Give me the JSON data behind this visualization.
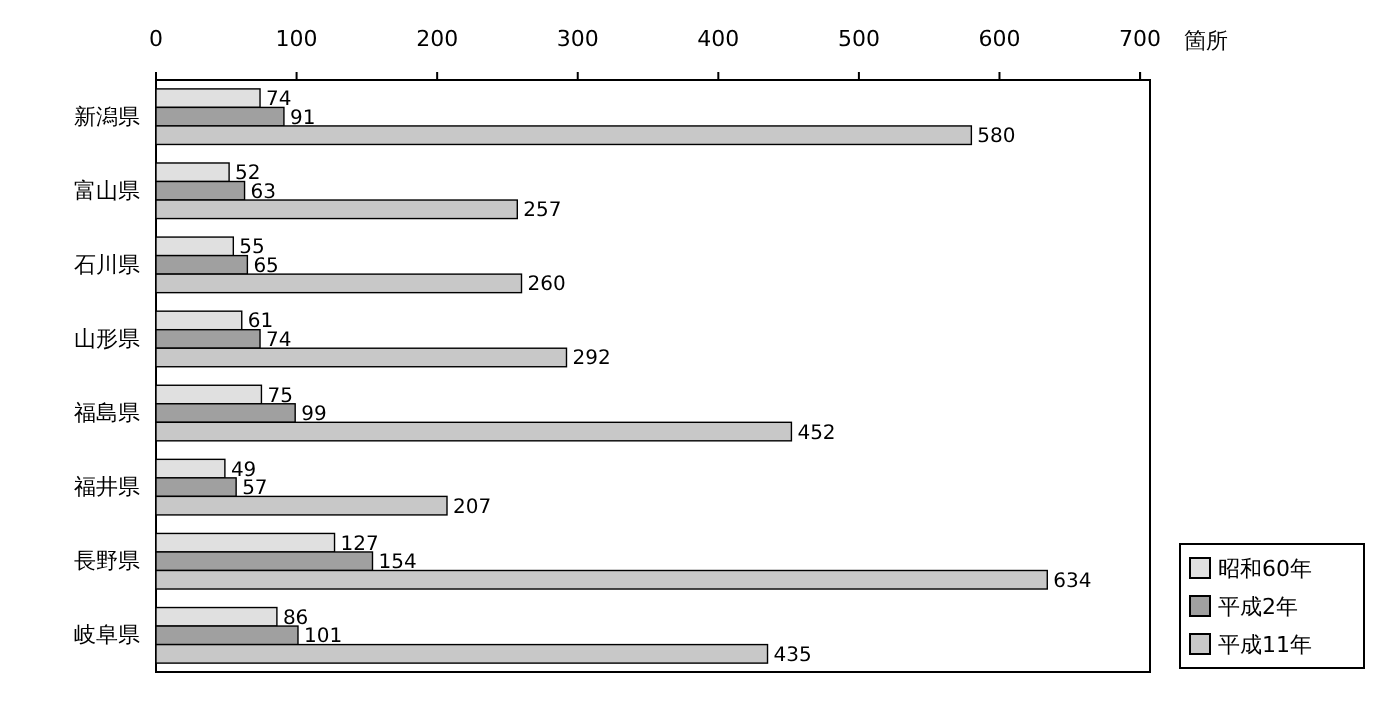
{
  "chart_data": {
    "type": "bar",
    "orientation": "horizontal",
    "xlabel": "箇所",
    "categories": [
      "新潟県",
      "富山県",
      "石川県",
      "山形県",
      "福島県",
      "福井県",
      "長野県",
      "岐阜県"
    ],
    "series": [
      {
        "name": "昭和60年",
        "color": "#e0e0e0",
        "values": [
          74,
          52,
          55,
          61,
          75,
          49,
          127,
          86
        ]
      },
      {
        "name": "平成2年",
        "color": "#a0a0a0",
        "values": [
          91,
          63,
          65,
          74,
          99,
          57,
          154,
          101
        ]
      },
      {
        "name": "平成11年",
        "color": "#c8c8c8",
        "values": [
          580,
          257,
          260,
          292,
          452,
          207,
          634,
          435
        ]
      }
    ],
    "xlim": [
      0,
      700
    ],
    "xticks": [
      0,
      100,
      200,
      300,
      400,
      500,
      600,
      700
    ],
    "data_labels": true,
    "legend": "bottom right",
    "grid": false
  }
}
